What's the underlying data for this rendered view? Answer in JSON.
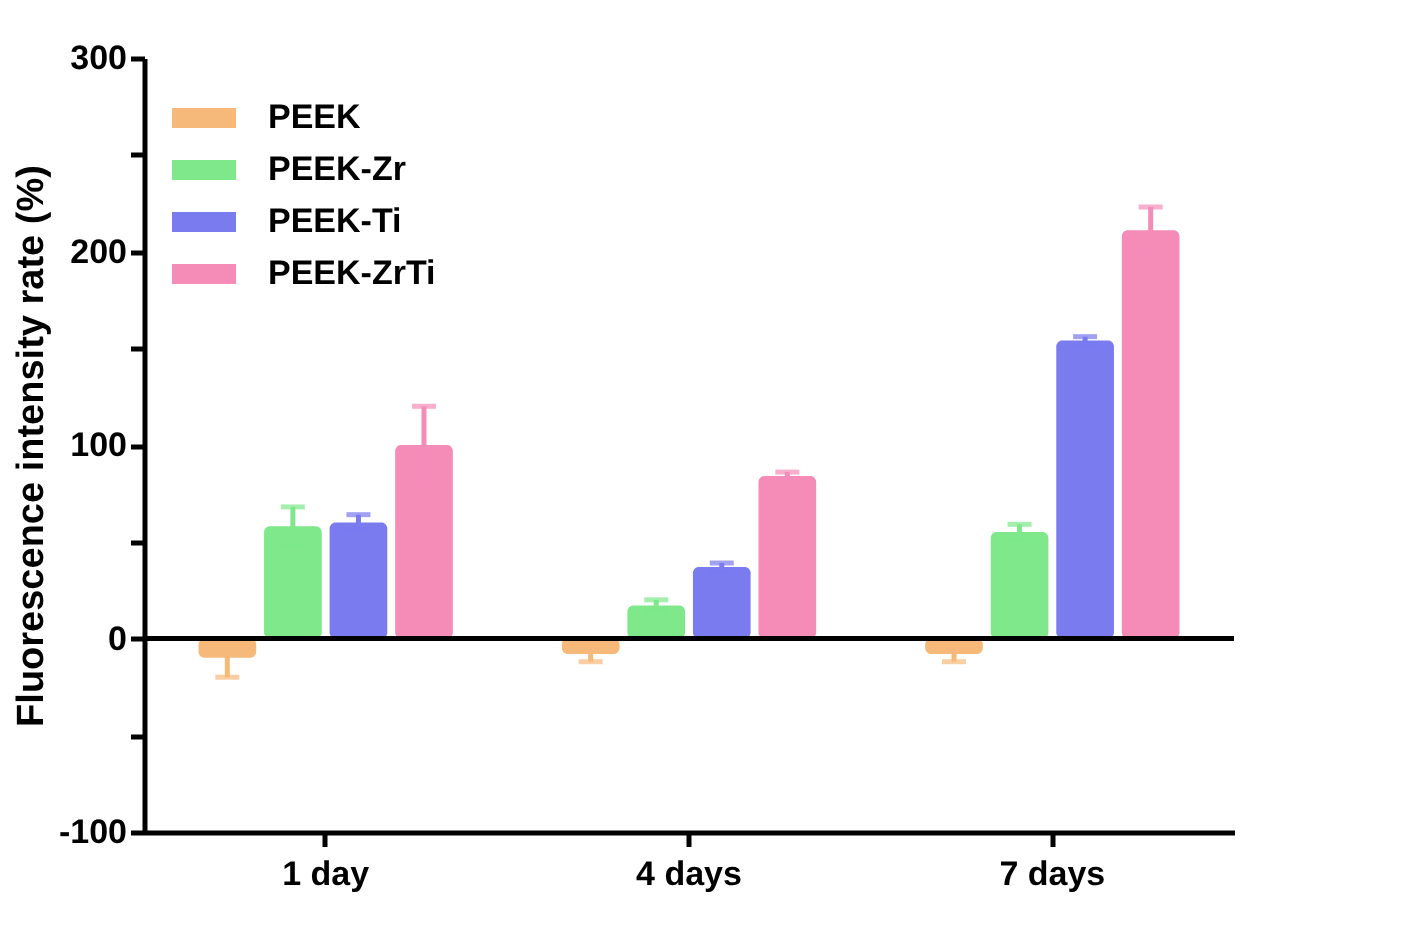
{
  "chart_data": {
    "type": "bar",
    "ylabel": "Fluorescence intensity rate (%)",
    "categories": [
      "1 day",
      "4 days",
      "7 days"
    ],
    "series": [
      {
        "name": "PEEK",
        "color": "#f7b97a",
        "values": [
          -10,
          -8,
          -8
        ],
        "errors": [
          10,
          4,
          4
        ]
      },
      {
        "name": "PEEK-Zr",
        "color": "#7ee88a",
        "values": [
          58,
          17,
          55
        ],
        "errors": [
          10,
          3,
          4
        ]
      },
      {
        "name": "PEEK-Ti",
        "color": "#7b7bf0",
        "values": [
          60,
          37,
          154
        ],
        "errors": [
          4,
          2,
          2
        ]
      },
      {
        "name": "PEEK-ZrTi",
        "color": "#f58cb8",
        "values": [
          100,
          84,
          211
        ],
        "errors": [
          20,
          2,
          12
        ]
      }
    ],
    "ylim": [
      -100,
      300
    ],
    "yticks": [
      -100,
      {
        "value": -50,
        "label": null
      },
      0,
      {
        "value": 50,
        "label": null
      },
      100,
      {
        "value": 150,
        "label": null
      },
      200,
      {
        "value": 250,
        "label": null
      },
      300
    ],
    "ref_lines": [
      {
        "axis": "y",
        "value": 0,
        "color": "#000000"
      }
    ],
    "grid": false,
    "legend": "top left"
  }
}
